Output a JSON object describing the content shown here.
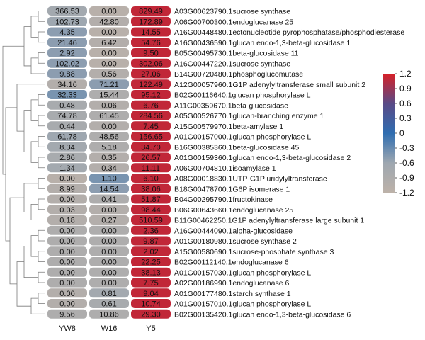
{
  "chart_data": {
    "type": "heatmap",
    "columns": [
      "YW8",
      "W16",
      "Y5"
    ],
    "rows": [
      {
        "label": "A03G00623790.1sucrose synthase",
        "values": [
          "366.53",
          "0.00",
          "829.49"
        ],
        "colors": [
          -0.7,
          -1.1,
          1.1
        ]
      },
      {
        "label": "A06G00700300.1endoglucanase 25",
        "values": [
          "102.73",
          "42.80",
          "172.89"
        ],
        "colors": [
          -0.6,
          -1.0,
          1.1
        ]
      },
      {
        "label": "A16G00448480.1ectonucleotide pyrophosphatase/phosphodiesterase",
        "values": [
          "4.35",
          "0.00",
          "14.55"
        ],
        "colors": [
          -0.5,
          -1.1,
          1.1
        ]
      },
      {
        "label": "A16G00436590.1glucan endo-1,3-beta-glucosidase 1",
        "values": [
          "21.46",
          "6.42",
          "54.76"
        ],
        "colors": [
          -0.5,
          -1.0,
          1.1
        ]
      },
      {
        "label": "B05G00495730.1beta-glucosidase 11",
        "values": [
          "2.92",
          "0.00",
          "9.50"
        ],
        "colors": [
          -0.5,
          -1.1,
          1.1
        ]
      },
      {
        "label": "A16G00447220.1sucrose synthase",
        "values": [
          "102.02",
          "0.00",
          "302.06"
        ],
        "colors": [
          -0.5,
          -1.1,
          1.1
        ]
      },
      {
        "label": "B14G00720480.1phosphoglucomutase",
        "values": [
          "9.88",
          "0.56",
          "27.06"
        ],
        "colors": [
          -0.5,
          -1.0,
          1.1
        ]
      },
      {
        "label": "A12G00057960.1G1P adenylyltransferase small subunit 2",
        "values": [
          "34.16",
          "71.21",
          "122.49"
        ],
        "colors": [
          -1.0,
          -0.5,
          1.1
        ]
      },
      {
        "label": "B02G00116640.1glucan phosphorylase L",
        "values": [
          "32.33",
          "15.44",
          "95.12"
        ],
        "colors": [
          -0.4,
          -0.9,
          1.1
        ]
      },
      {
        "label": "A11G00359670.1beta-glucosidase",
        "values": [
          "0.48",
          "0.06",
          "6.76"
        ],
        "colors": [
          -0.8,
          -1.0,
          1.1
        ]
      },
      {
        "label": "A05G00526770.1glucan-branching enzyme 1",
        "values": [
          "74.78",
          "61.45",
          "284.56"
        ],
        "colors": [
          -0.8,
          -0.9,
          1.1
        ]
      },
      {
        "label": "A15G00579970.1beta-amylase 1",
        "values": [
          "0.44",
          "0.00",
          "7.45"
        ],
        "colors": [
          -0.8,
          -1.0,
          1.1
        ]
      },
      {
        "label": "A01G00157000.1glucan phosphorylase L",
        "values": [
          "61.78",
          "48.56",
          "156.65"
        ],
        "colors": [
          -0.6,
          -0.9,
          1.1
        ]
      },
      {
        "label": "B16G00385360.1beta-glucosidase 45",
        "values": [
          "8.34",
          "5.18",
          "34.70"
        ],
        "colors": [
          -0.7,
          -0.9,
          1.1
        ]
      },
      {
        "label": "A01G00159360.1glucan endo-1,3-beta-glucosidase 2",
        "values": [
          "2.86",
          "0.35",
          "26.57"
        ],
        "colors": [
          -0.8,
          -1.0,
          1.1
        ]
      },
      {
        "label": "A06G00704810.1isoamylase 1",
        "values": [
          "1.34",
          "0.34",
          "11.11"
        ],
        "colors": [
          -0.7,
          -1.0,
          1.1
        ]
      },
      {
        "label": "A08G00018830.1UTP-G1P uridylyltransferase",
        "values": [
          "0.00",
          "1.10",
          "6.10"
        ],
        "colors": [
          -1.1,
          -0.4,
          1.1
        ]
      },
      {
        "label": "B18G00478700.1G6P isomerase 1",
        "values": [
          "8.99",
          "14.54",
          "38.06"
        ],
        "colors": [
          -1.0,
          -0.5,
          1.1
        ]
      },
      {
        "label": "B04G00295790.1fructokinase",
        "values": [
          "0.00",
          "0.41",
          "51.87"
        ],
        "colors": [
          -1.0,
          -0.9,
          1.1
        ]
      },
      {
        "label": "B06G00643660.1endoglucanase 25",
        "values": [
          "0.03",
          "0.00",
          "98.44"
        ],
        "colors": [
          -1.0,
          -1.0,
          1.1
        ]
      },
      {
        "label": "B11G00462250.1G1P adenylyltransferase large subunit 1",
        "values": [
          "0.18",
          "0.27",
          "510.59"
        ],
        "colors": [
          -1.0,
          -1.0,
          1.1
        ]
      },
      {
        "label": "A16G00444090.1alpha-glucosidase",
        "values": [
          "0.00",
          "0.00",
          "2.36"
        ],
        "colors": [
          -0.9,
          -0.9,
          1.1
        ]
      },
      {
        "label": "A01G00180980.1sucrose synthase 2",
        "values": [
          "0.00",
          "0.00",
          "9.87"
        ],
        "colors": [
          -0.9,
          -0.9,
          1.1
        ]
      },
      {
        "label": "A15G00580690.1sucrose-phosphate synthase 3",
        "values": [
          "0.00",
          "0.00",
          "2.02"
        ],
        "colors": [
          -0.9,
          -0.9,
          1.1
        ]
      },
      {
        "label": "B02G00112140.1endoglucanase 6",
        "values": [
          "0.00",
          "0.00",
          "22.25"
        ],
        "colors": [
          -0.9,
          -0.9,
          1.1
        ]
      },
      {
        "label": "A01G00157030.1glucan phosphorylase L",
        "values": [
          "0.00",
          "0.00",
          "38.13"
        ],
        "colors": [
          -0.9,
          -0.9,
          1.1
        ]
      },
      {
        "label": "A02G00186990.1endoglucanase 6",
        "values": [
          "0.00",
          "0.00",
          "7.75"
        ],
        "colors": [
          -0.9,
          -0.9,
          1.1
        ]
      },
      {
        "label": "A01G00177480.1starch synthase 1",
        "values": [
          "0.00",
          "0.81",
          "9.04"
        ],
        "colors": [
          -1.0,
          -0.7,
          1.1
        ]
      },
      {
        "label": "A01G00157010.1glucan phosphorylase L",
        "values": [
          "0.00",
          "0.61",
          "10.74"
        ],
        "colors": [
          -1.0,
          -0.8,
          1.1
        ]
      },
      {
        "label": "B02G00135420.1glucan endo-1,3-beta-glucosidase 6",
        "values": [
          "9.56",
          "10.86",
          "29.30"
        ],
        "colors": [
          -0.9,
          -0.9,
          1.1
        ]
      }
    ],
    "color_scale": {
      "min": -1.2,
      "max": 1.2,
      "ticks": [
        "1.2",
        "0.9",
        "0.6",
        "0.3",
        "0",
        "-0.3",
        "-0.6",
        "-0.9",
        "-1.2"
      ],
      "stops": [
        {
          "value": -1.2,
          "color": "#bdb2a9"
        },
        {
          "value": -0.6,
          "color": "#9ea7b0"
        },
        {
          "value": 0.0,
          "color": "#2f6db0"
        },
        {
          "value": 0.6,
          "color": "#5a4a86"
        },
        {
          "value": 1.2,
          "color": "#d62028"
        }
      ]
    }
  }
}
